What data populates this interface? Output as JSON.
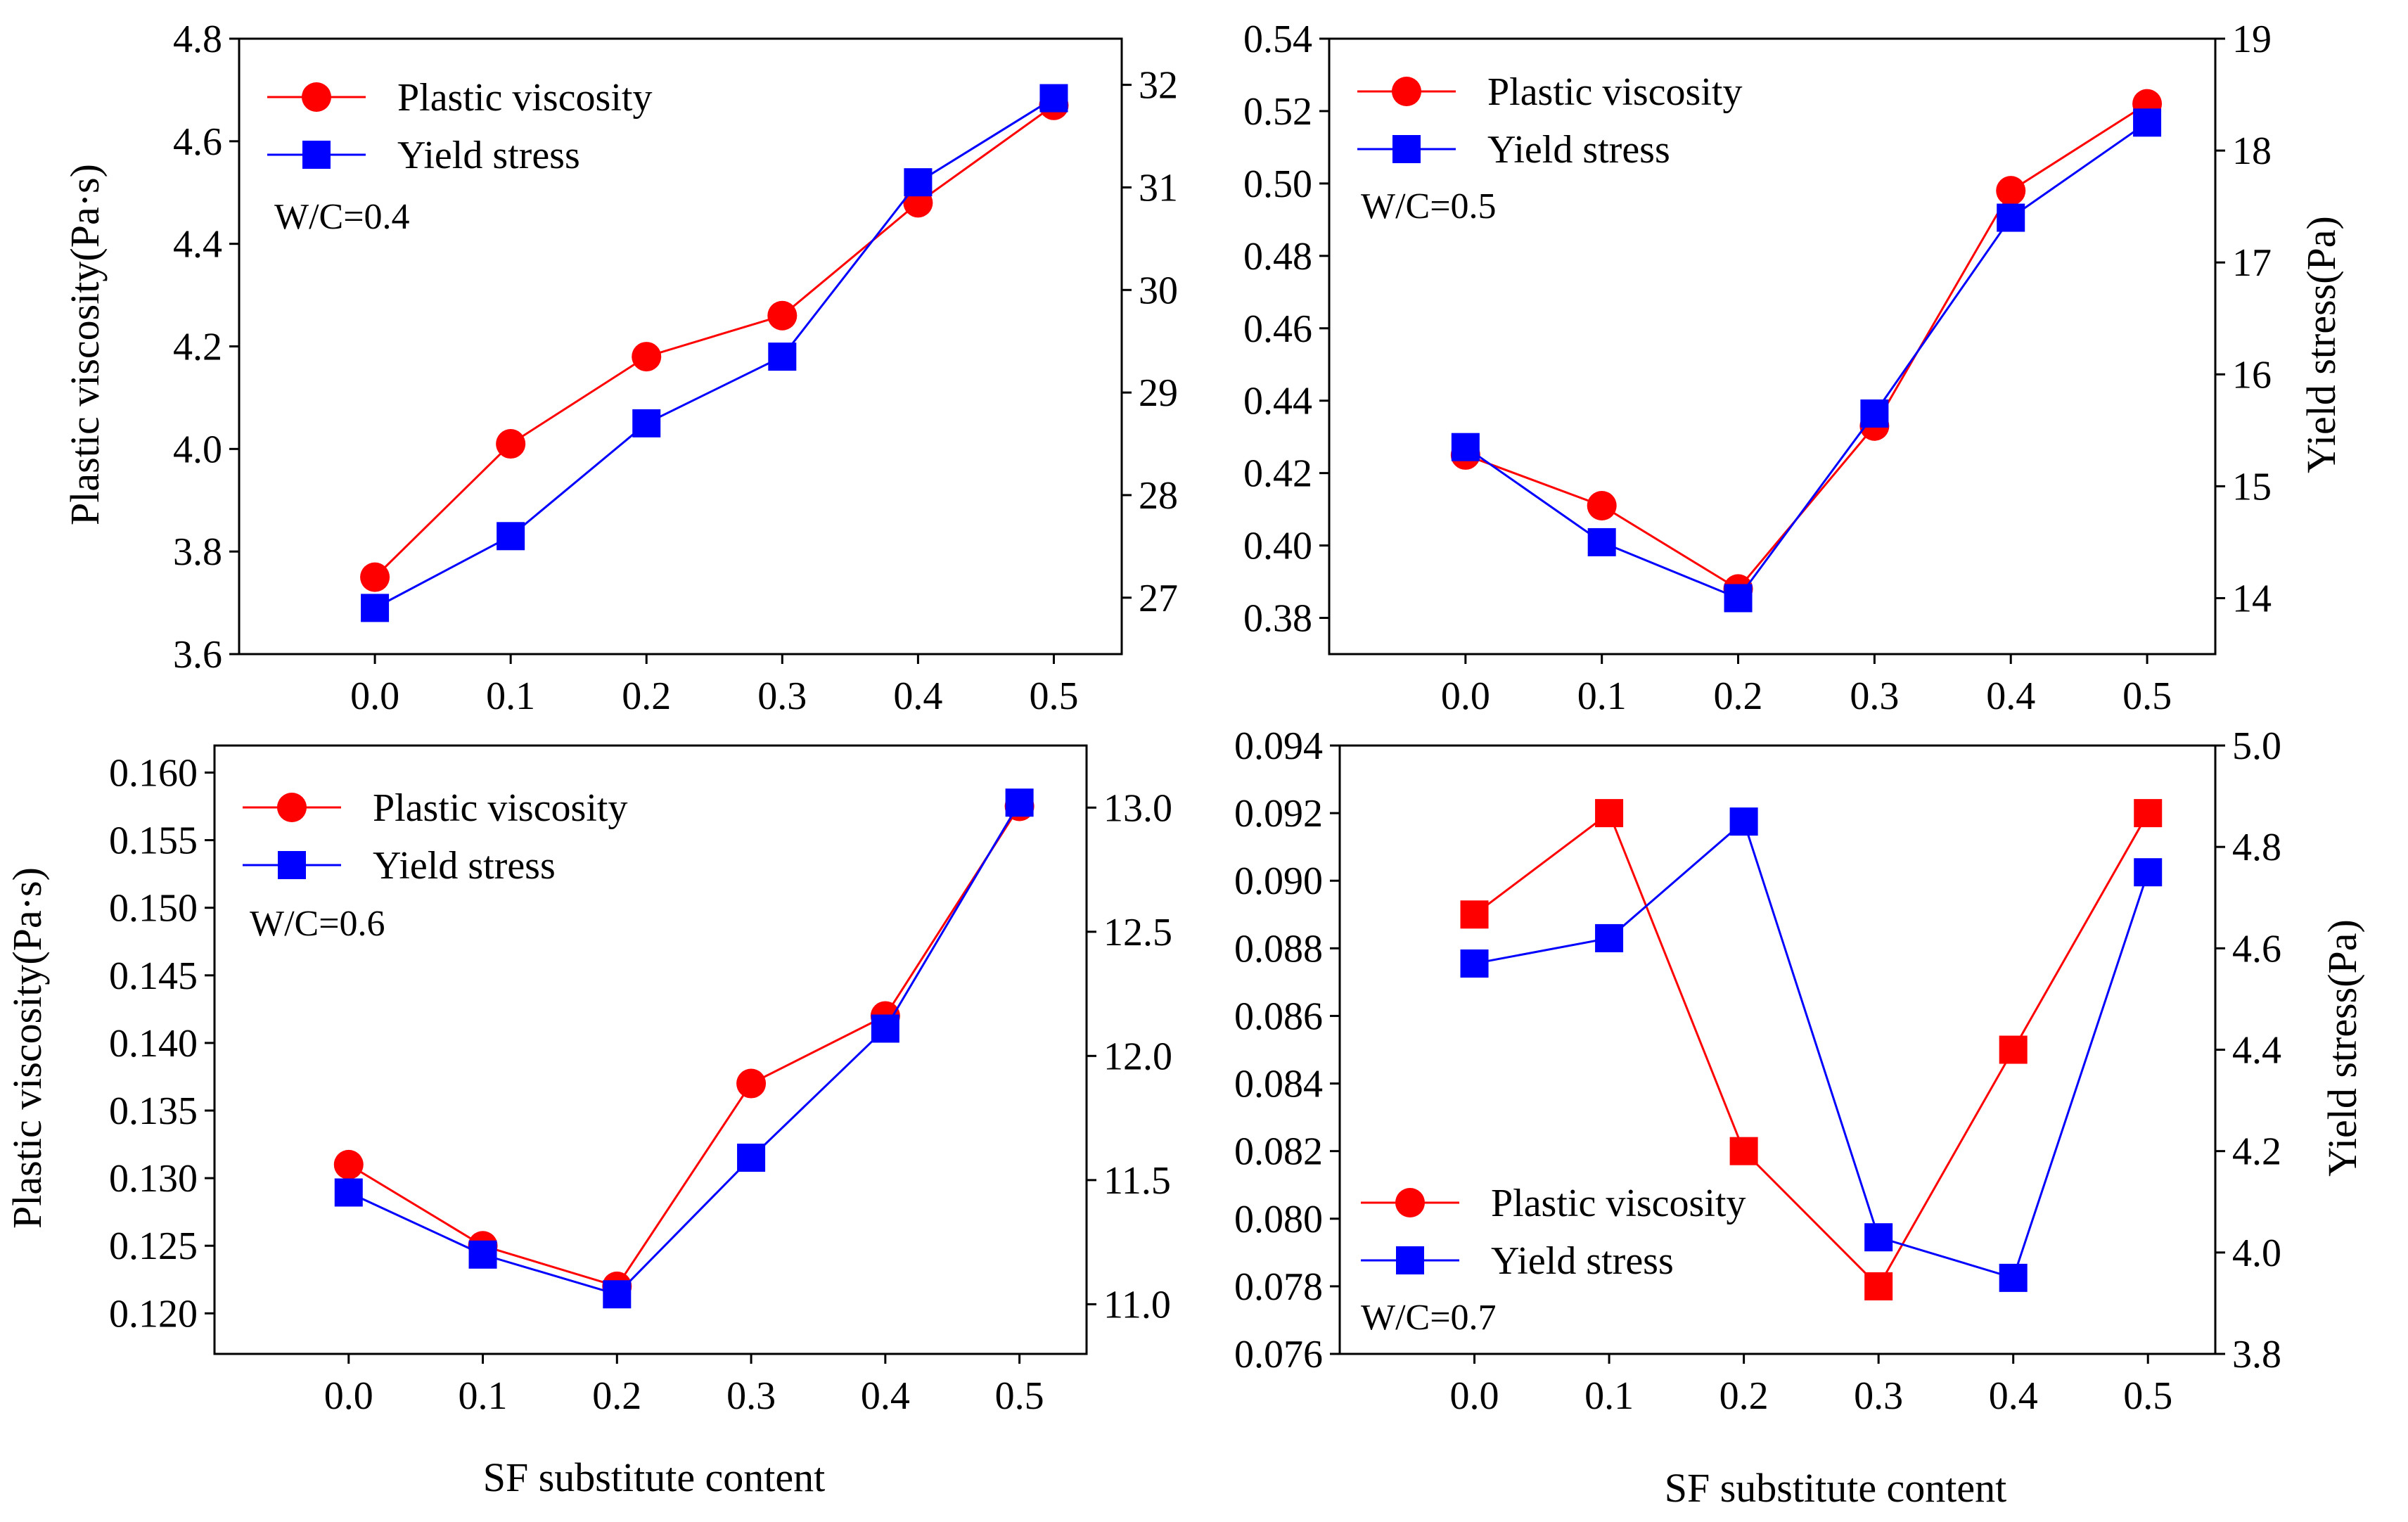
{
  "colors": {
    "plastic_viscosity": "#ff0000",
    "yield_stress": "#0000ff",
    "axes": "#000000",
    "background": "#ffffff"
  },
  "figure": {
    "xlabel_left": "SF substitute content",
    "xlabel_right": "SF substitute content"
  },
  "chart_data": [
    {
      "type": "line",
      "annotation": "W/C=0.4",
      "legend_position": "top-left",
      "x": [
        0.0,
        0.1,
        0.2,
        0.3,
        0.4,
        0.5
      ],
      "x_tick_labels": [
        "0.0",
        "0.1",
        "0.2",
        "0.3",
        "0.4",
        "0.5"
      ],
      "xlim": [
        -0.1,
        0.55
      ],
      "ylabel": "Plastic viscosity(Pa·s)",
      "ylim": [
        3.6,
        4.8
      ],
      "y_ticks": [
        "3.6",
        "3.8",
        "4.0",
        "4.2",
        "4.4",
        "4.6",
        "4.8"
      ],
      "y2label": "",
      "y2lim": [
        26.45,
        32.45
      ],
      "y2_ticks": [
        "27",
        "28",
        "29",
        "30",
        "31",
        "32"
      ],
      "series": [
        {
          "name": "Plastic viscosity",
          "axis": "left",
          "marker": "circle",
          "values": [
            3.75,
            4.01,
            4.18,
            4.26,
            4.48,
            4.67
          ]
        },
        {
          "name": "Yield stress",
          "axis": "right",
          "marker": "square",
          "values": [
            26.9,
            27.6,
            28.7,
            29.35,
            31.05,
            31.87
          ]
        }
      ]
    },
    {
      "type": "line",
      "annotation": "W/C=0.5",
      "legend_position": "top-left",
      "x": [
        0.0,
        0.1,
        0.2,
        0.3,
        0.4,
        0.5
      ],
      "x_tick_labels": [
        "0.0",
        "0.1",
        "0.2",
        "0.3",
        "0.4",
        "0.5"
      ],
      "xlim": [
        -0.1,
        0.55
      ],
      "ylabel": "",
      "ylim": [
        0.37,
        0.54
      ],
      "y_ticks": [
        "0.38",
        "0.40",
        "0.42",
        "0.44",
        "0.46",
        "0.48",
        "0.50",
        "0.52",
        "0.54"
      ],
      "y2label": "Yield stress(Pa)",
      "y2lim": [
        13.5,
        19.0
      ],
      "y2_ticks": [
        "14",
        "15",
        "16",
        "17",
        "18",
        "19"
      ],
      "series": [
        {
          "name": "Plastic viscosity",
          "axis": "left",
          "marker": "circle",
          "values": [
            0.425,
            0.411,
            0.388,
            0.433,
            0.498,
            0.522
          ]
        },
        {
          "name": "Yield stress",
          "axis": "right",
          "marker": "square",
          "values": [
            15.35,
            14.5,
            14.0,
            15.65,
            17.4,
            18.25
          ]
        }
      ]
    },
    {
      "type": "line",
      "annotation": "W/C=0.6",
      "legend_position": "top-left",
      "x": [
        0.0,
        0.1,
        0.2,
        0.3,
        0.4,
        0.5
      ],
      "x_tick_labels": [
        "0.0",
        "0.1",
        "0.2",
        "0.3",
        "0.4",
        "0.5"
      ],
      "xlim": [
        -0.1,
        0.55
      ],
      "ylabel": "Plastic viscosity(Pa·s)",
      "ylim": [
        0.117,
        0.162
      ],
      "y_ticks": [
        "0.120",
        "0.125",
        "0.130",
        "0.135",
        "0.140",
        "0.145",
        "0.150",
        "0.155",
        "0.160"
      ],
      "y2label": "",
      "y2lim": [
        10.8,
        13.25
      ],
      "y2_ticks": [
        "11.0",
        "11.5",
        "12.0",
        "12.5",
        "13.0"
      ],
      "series": [
        {
          "name": "Plastic viscosity",
          "axis": "left",
          "marker": "circle",
          "values": [
            0.131,
            0.125,
            0.122,
            0.137,
            0.142,
            0.1575
          ]
        },
        {
          "name": "Yield stress",
          "axis": "right",
          "marker": "square",
          "values": [
            11.45,
            11.2,
            11.04,
            11.59,
            12.11,
            13.02
          ]
        }
      ]
    },
    {
      "type": "line",
      "annotation": "W/C=0.7",
      "legend_position": "bottom-left",
      "x": [
        0.0,
        0.1,
        0.2,
        0.3,
        0.4,
        0.5
      ],
      "x_tick_labels": [
        "0.0",
        "0.1",
        "0.2",
        "0.3",
        "0.4",
        "0.5"
      ],
      "xlim": [
        -0.1,
        0.55
      ],
      "ylabel": "",
      "ylim": [
        0.076,
        0.094
      ],
      "y_ticks": [
        "0.076",
        "0.078",
        "0.080",
        "0.082",
        "0.084",
        "0.086",
        "0.088",
        "0.090",
        "0.092",
        "0.094"
      ],
      "y2label": "Yield stress(Pa)",
      "y2lim": [
        3.8,
        5.0
      ],
      "y2_ticks": [
        "3.8",
        "4.0",
        "4.2",
        "4.4",
        "4.6",
        "4.8",
        "5.0"
      ],
      "series": [
        {
          "name": "Plastic viscosity",
          "axis": "left",
          "marker": "square",
          "legend_marker": "circle",
          "values": [
            0.089,
            0.092,
            0.082,
            0.078,
            0.085,
            0.092
          ]
        },
        {
          "name": "Yield stress",
          "axis": "right",
          "marker": "square",
          "values": [
            4.57,
            4.62,
            4.85,
            4.03,
            3.95,
            4.75
          ]
        }
      ]
    }
  ]
}
